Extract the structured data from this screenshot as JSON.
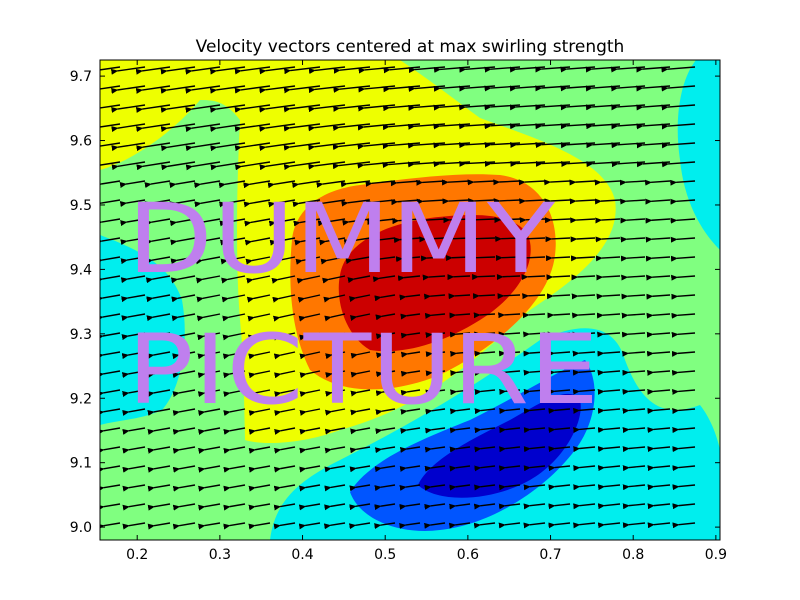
{
  "chart_data": {
    "type": "contour",
    "title": "Velocity vectors centered at max swirling strength",
    "xlabel": "",
    "ylabel": "",
    "xlim": [
      0.155,
      0.905
    ],
    "ylim": [
      8.98,
      9.725
    ],
    "x_ticks": [
      0.2,
      0.3,
      0.4,
      0.5,
      0.6,
      0.7,
      0.8,
      0.9
    ],
    "x_tick_labels": [
      "0.2",
      "0.3",
      "0.4",
      "0.5",
      "0.6",
      "0.7",
      "0.8",
      "0.9"
    ],
    "y_ticks": [
      9.0,
      9.1,
      9.2,
      9.3,
      9.4,
      9.5,
      9.6,
      9.7
    ],
    "y_tick_labels": [
      "9.0",
      "9.1",
      "9.2",
      "9.3",
      "9.4",
      "9.5",
      "9.6",
      "9.7"
    ],
    "grid": false,
    "contour_colors": [
      "#0000cd",
      "#0055ff",
      "#00eeee",
      "#80ff80",
      "#eeff00",
      "#ff7700",
      "#cc0000"
    ],
    "max_swirl_center": [
      0.52,
      9.42
    ],
    "min_center": [
      0.62,
      9.11
    ],
    "overlay_text": [
      "DUMMY",
      "PICTURE"
    ],
    "overlay_color": "#bf7fee"
  }
}
